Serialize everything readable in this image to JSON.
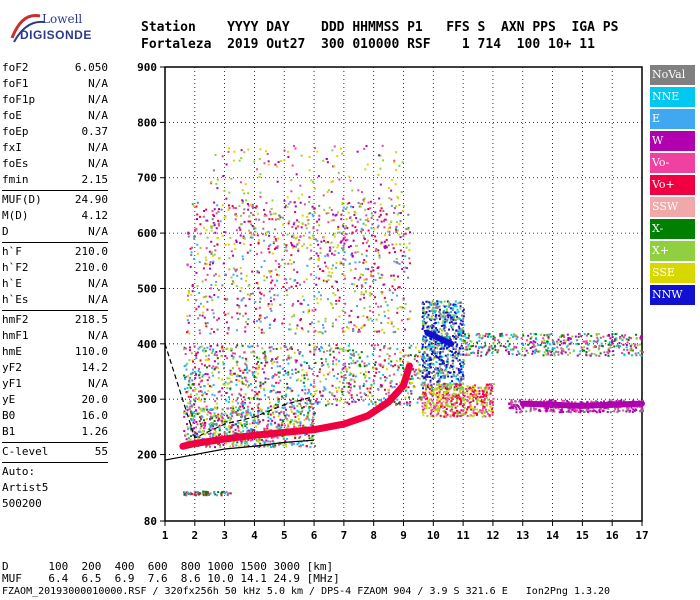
{
  "logo": {
    "line1": "Lowell",
    "line2": "DIGISONDE"
  },
  "header": {
    "line1": "Station    YYYY DAY    DDD HHMMSS P1   FFS S  AXN PPS  IGA PS",
    "line2": "Fortaleza  2019 Out27  300 010000 RSF    1 714  100 10+ 11"
  },
  "params_groups": [
    [
      [
        "foF2",
        "6.050"
      ],
      [
        "foF1",
        "N/A"
      ],
      [
        "foF1p",
        "N/A"
      ],
      [
        "foE",
        "N/A"
      ],
      [
        "foEp",
        "0.37"
      ],
      [
        "fxI",
        "N/A"
      ],
      [
        "foEs",
        "N/A"
      ],
      [
        "fmin",
        "2.15"
      ]
    ],
    [
      [
        "MUF(D)",
        "24.90"
      ],
      [
        "M(D)",
        "4.12"
      ],
      [
        "D",
        "N/A"
      ]
    ],
    [
      [
        "h`F",
        "210.0"
      ],
      [
        "h`F2",
        "210.0"
      ],
      [
        "h`E",
        "N/A"
      ],
      [
        "h`Es",
        "N/A"
      ]
    ],
    [
      [
        "hmF2",
        "218.5"
      ],
      [
        "hmF1",
        "N/A"
      ],
      [
        "hmE",
        "110.0"
      ],
      [
        "yF2",
        "14.2"
      ],
      [
        "yF1",
        "N/A"
      ],
      [
        "yE",
        "20.0"
      ],
      [
        "B0",
        "16.0"
      ],
      [
        "B1",
        "1.26"
      ]
    ],
    [
      [
        "C-level",
        "55"
      ]
    ]
  ],
  "auto": [
    "Auto:",
    "Artist5",
    "500200"
  ],
  "legend": [
    {
      "label": "NoVal",
      "color": "#808080"
    },
    {
      "label": "NNE",
      "color": "#00c8f0"
    },
    {
      "label": "E",
      "color": "#40a8f0"
    },
    {
      "label": "W",
      "color": "#b000b0"
    },
    {
      "label": "Vo-",
      "color": "#f040a0"
    },
    {
      "label": "Vo+",
      "color": "#f00040"
    },
    {
      "label": "SSW",
      "color": "#f0a8a8"
    },
    {
      "label": "X-",
      "color": "#008000"
    },
    {
      "label": "X+",
      "color": "#90d040"
    },
    {
      "label": "SSE",
      "color": "#d8d800"
    },
    {
      "label": "NNW",
      "color": "#1010d0"
    }
  ],
  "footer": {
    "d_line": "D      100  200  400  600  800 1000 1500 3000 [km]",
    "muf_line": "MUF    6.4  6.5  6.9  7.6  8.6 10.0 14.1 24.9 [MHz]",
    "file_line": "FZAOM_20193000010000.RSF / 320fx256h 50 kHz 5.0 km / DPS-4 FZAOM 904 / 3.9 S 321.6 E   Ion2Png 1.3.20"
  },
  "chart_data": {
    "type": "scatter",
    "xlim": [
      1,
      17
    ],
    "ylim": [
      80,
      900
    ],
    "xticks": [
      1,
      2,
      3,
      4,
      5,
      6,
      7,
      8,
      9,
      10,
      11,
      12,
      13,
      14,
      15,
      16,
      17
    ],
    "yticks": [
      80,
      200,
      300,
      400,
      500,
      600,
      700,
      800,
      900
    ],
    "y_gridlines": [
      200,
      300,
      400,
      500,
      600,
      700,
      800
    ],
    "trace_series": [
      {
        "color_key": "Vo+",
        "points": [
          [
            1.6,
            215
          ],
          [
            2.0,
            220
          ],
          [
            3.0,
            228
          ],
          [
            4.0,
            235
          ],
          [
            5.0,
            240
          ],
          [
            6.0,
            245
          ],
          [
            7.0,
            255
          ],
          [
            7.8,
            270
          ],
          [
            8.5,
            295
          ],
          [
            9.0,
            325
          ],
          [
            9.2,
            360
          ]
        ]
      },
      {
        "color_key": "W",
        "points": [
          [
            13.0,
            292
          ],
          [
            14.0,
            290
          ],
          [
            15.0,
            288
          ],
          [
            16.0,
            290
          ],
          [
            17.0,
            292
          ]
        ]
      },
      {
        "color_key": "NNW",
        "points": [
          [
            9.8,
            420
          ],
          [
            10.2,
            410
          ],
          [
            10.6,
            400
          ]
        ]
      }
    ],
    "model_curves": [
      {
        "style": "dashed",
        "points": [
          [
            1,
            400
          ],
          [
            2.0,
            230
          ],
          [
            3.0,
            255
          ],
          [
            4.0,
            268
          ],
          [
            5.0,
            290
          ],
          [
            6.0,
            305
          ]
        ]
      },
      {
        "style": "solid",
        "points": [
          [
            1,
            190
          ],
          [
            2.0,
            200
          ],
          [
            3.0,
            210
          ],
          [
            4.0,
            215
          ],
          [
            5.0,
            222
          ],
          [
            6.0,
            226
          ]
        ]
      }
    ]
  }
}
